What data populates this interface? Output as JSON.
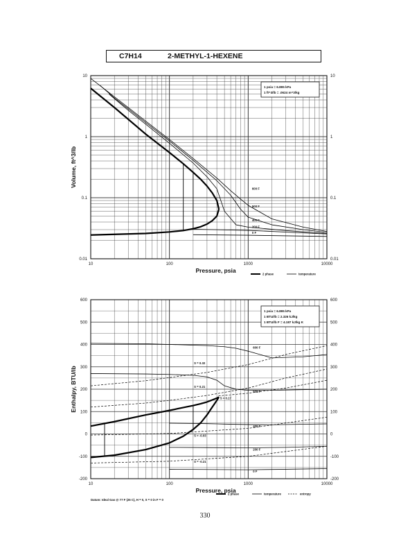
{
  "header": {
    "formula": "C7H14",
    "compound": "2-METHYL-1-HEXENE"
  },
  "page_number": "330",
  "chart_data": [
    {
      "type": "line",
      "title": "",
      "xlabel": "Pressure,  psia",
      "ylabel": "Volume, ft^3/lb",
      "x_scale": "log",
      "y_scale": "log",
      "xlim": [
        10,
        10000
      ],
      "ylim": [
        0.01,
        10
      ],
      "x_tick_labels": [
        "10",
        "100",
        "1000",
        "10000"
      ],
      "y_tick_labels": [
        "0.01",
        "0.1",
        "1",
        "10"
      ],
      "grid": true,
      "conversions": [
        "1 psia  =  6.895 kPa",
        "1 ft^3/lb  =  .0624 m^3/kg"
      ],
      "legend": {
        "placement": "bottom-right",
        "entries": [
          "2 phase",
          "temperature"
        ]
      },
      "isotherm_labels": [
        "600 F",
        "500 F",
        "400 F",
        "200 F",
        "0 F"
      ],
      "series": [
        {
          "name": "saturated vapor",
          "style": "2 phase",
          "x": [
            10,
            20,
            50,
            100,
            150,
            200,
            250,
            300,
            350,
            400,
            425
          ],
          "y": [
            6.2,
            3.0,
            1.1,
            0.55,
            0.36,
            0.26,
            0.2,
            0.155,
            0.12,
            0.09,
            0.065
          ]
        },
        {
          "name": "saturated liquid",
          "style": "2 phase",
          "x": [
            10,
            50,
            100,
            150,
            200,
            250,
            300,
            350,
            400,
            425
          ],
          "y": [
            0.0245,
            0.026,
            0.0275,
            0.029,
            0.031,
            0.0335,
            0.037,
            0.042,
            0.05,
            0.065
          ]
        },
        {
          "name": "600 F",
          "style": "temperature",
          "x": [
            10,
            20,
            50,
            100,
            200,
            400,
            600,
            800,
            1000,
            2000,
            5000,
            10000
          ],
          "y": [
            9.0,
            4.5,
            1.8,
            0.9,
            0.44,
            0.21,
            0.13,
            0.095,
            0.075,
            0.045,
            0.033,
            0.028
          ]
        },
        {
          "name": "500 F",
          "style": "temperature",
          "x": [
            13,
            20,
            50,
            100,
            200,
            400,
            600,
            800,
            1000,
            2000,
            5000,
            10000
          ],
          "y": [
            7.0,
            4.3,
            1.7,
            0.85,
            0.41,
            0.19,
            0.11,
            0.065,
            0.048,
            0.036,
            0.03,
            0.027
          ]
        },
        {
          "name": "400 F",
          "style": "temperature",
          "x": [
            17,
            30,
            50,
            100,
            200,
            300,
            400,
            500,
            700,
            1000,
            3000,
            10000
          ],
          "y": [
            5.0,
            2.7,
            1.6,
            0.78,
            0.37,
            0.22,
            0.14,
            0.06,
            0.036,
            0.033,
            0.029,
            0.026
          ]
        },
        {
          "name": "200 F",
          "style": "temperature",
          "x": [
            200,
            1000,
            10000
          ],
          "y": [
            0.0305,
            0.0292,
            0.0255
          ]
        },
        {
          "name": "0 F",
          "style": "temperature",
          "x": [
            200,
            1000,
            10000
          ],
          "y": [
            0.0248,
            0.0243,
            0.0232
          ]
        },
        {
          "name": "tie line 150 psia",
          "style": "2 phase",
          "x": [
            150,
            150
          ],
          "y": [
            0.029,
            0.36
          ]
        },
        {
          "name": "tie line 200 psia",
          "style": "2 phase",
          "x": [
            200,
            200
          ],
          "y": [
            0.031,
            0.26
          ]
        }
      ]
    },
    {
      "type": "line",
      "title": "",
      "xlabel": "Pressure,  psia",
      "ylabel": "Enthalpy, BTU/lb",
      "x_scale": "log",
      "xlim": [
        10,
        10000
      ],
      "ylim": [
        -200,
        600
      ],
      "x_tick_labels": [
        "10",
        "100",
        "1000",
        "10000"
      ],
      "y_tick_labels": [
        "600",
        "500",
        "400",
        "300",
        "200",
        "100",
        "0",
        "-100",
        "-200"
      ],
      "grid": true,
      "conversions": [
        "1 psia  =  6.895 kPa",
        "1 BTU/lb  =  2.326 kJ/kg",
        "1 BTU/lb F  =  4.187 kJ/kg K"
      ],
      "legend": {
        "placement": "bottom-right",
        "entries": [
          "2 phase",
          "temperature",
          "entropy"
        ]
      },
      "footnote": "Datum: Ideal Gas @ 77 F (25 C),  H = 0,  S = 0 in F = 0",
      "isotherm_labels": [
        "600 F",
        "500 F",
        "400 F",
        "200 F",
        "0 F"
      ],
      "entropy_labels": [
        "S = 0.32",
        "S = 0.21",
        "S = 0.17",
        "S = -0.03",
        "S = -0.21"
      ],
      "series": [
        {
          "name": "saturated vapor",
          "style": "2 phase",
          "x": [
            10,
            20,
            50,
            100,
            150,
            200,
            250,
            300,
            350,
            400,
            425
          ],
          "y": [
            35,
            55,
            85,
            105,
            118,
            127,
            135,
            143,
            152,
            160,
            165
          ]
        },
        {
          "name": "saturated liquid",
          "style": "2 phase",
          "x": [
            10,
            20,
            50,
            100,
            150,
            200,
            250,
            300,
            350,
            400,
            425
          ],
          "y": [
            -105,
            -95,
            -70,
            -40,
            -10,
            20,
            50,
            85,
            120,
            150,
            165
          ]
        },
        {
          "name": "600 F",
          "style": "temperature",
          "x": [
            10,
            50,
            100,
            300,
            500,
            700,
            1000,
            2000,
            5000,
            10000
          ],
          "y": [
            405,
            403,
            400,
            395,
            390,
            383,
            370,
            340,
            345,
            355
          ]
        },
        {
          "name": "500 F",
          "style": "temperature",
          "x": [
            10,
            50,
            100,
            200,
            300,
            400,
            500,
            700,
            1000,
            2000,
            10000
          ],
          "y": [
            270,
            268,
            266,
            262,
            255,
            240,
            215,
            200,
            195,
            195,
            200
          ]
        },
        {
          "name": "400 F",
          "style": "temperature",
          "x": [
            100,
            200,
            300,
            400,
            500,
            1000,
            2000,
            10000
          ],
          "y": [
            48,
            47,
            46,
            45,
            44,
            42,
            41,
            45
          ]
        },
        {
          "name": "200 F",
          "style": "temperature",
          "x": [
            100,
            300,
            1000,
            3000,
            10000
          ],
          "y": [
            -60,
            -61,
            -62,
            -60,
            -55
          ]
        },
        {
          "name": "0 F",
          "style": "temperature",
          "x": [
            100,
            300,
            1000,
            3000,
            10000
          ],
          "y": [
            -158,
            -159,
            -160,
            -158,
            -155
          ]
        },
        {
          "name": "S = 0.32",
          "style": "entropy",
          "x": [
            10,
            50,
            100,
            300,
            1000,
            3000,
            10000
          ],
          "y": [
            215,
            238,
            252,
            275,
            310,
            355,
            395
          ]
        },
        {
          "name": "S = 0.21",
          "style": "entropy",
          "x": [
            10,
            50,
            100,
            300,
            1000,
            3000,
            10000
          ],
          "y": [
            120,
            138,
            150,
            172,
            205,
            250,
            290
          ]
        },
        {
          "name": "S = 0.17",
          "style": "entropy",
          "x": [
            420,
            1000,
            3000,
            10000
          ],
          "y": [
            170,
            182,
            205,
            240
          ]
        },
        {
          "name": "S = -0.03",
          "style": "entropy",
          "x": [
            10,
            100,
            1000,
            10000
          ],
          "y": [
            -5,
            2,
            25,
            75
          ]
        },
        {
          "name": "S = -0.21",
          "style": "entropy",
          "x": [
            10,
            100,
            1000,
            10000
          ],
          "y": [
            -130,
            -122,
            -100,
            -55
          ]
        },
        {
          "name": "tie line 15 psia",
          "style": "2 phase",
          "x": [
            15,
            15
          ],
          "y": [
            -100,
            48
          ]
        },
        {
          "name": "tie line 200 psia",
          "style": "2 phase",
          "x": [
            200,
            200
          ],
          "y": [
            20,
            127
          ]
        }
      ]
    }
  ]
}
